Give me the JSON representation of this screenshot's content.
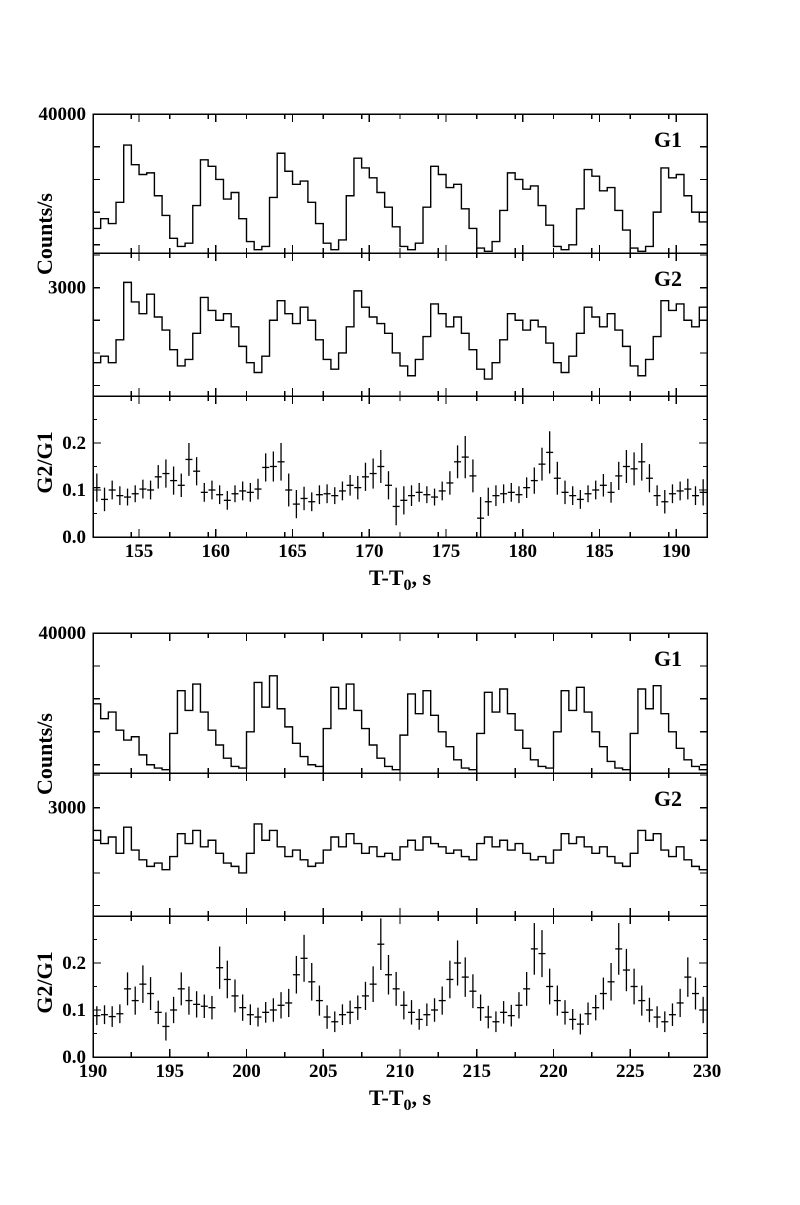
{
  "page": {
    "background": "#ffffff",
    "ink_color": "#000000"
  },
  "chart_data": [
    {
      "id": "top-light-curve",
      "type": "multi-panel histogram + errorbar time series",
      "xlabel": {
        "prefix": "T-T",
        "subscript": "0",
        "suffix": ", s"
      },
      "x_range": [
        152,
        192
      ],
      "bin_seconds": 0.5,
      "xticks_labeled": [
        155,
        160,
        165,
        170,
        175,
        180,
        185,
        190
      ],
      "xtick_label_texts": [
        "155",
        "160",
        "165",
        "170",
        "175",
        "180",
        "185",
        "190"
      ],
      "xticks_minor_step": 2.5,
      "panels": [
        {
          "label": "G1",
          "type": "histogram",
          "ylabel_shared": "Counts/s",
          "ylim": [
            31500,
            40000
          ],
          "yticks": [
            32000,
            34000,
            36000,
            38000,
            40000
          ],
          "ytick_labels": [
            {
              "value": 40000,
              "text": "40000"
            }
          ],
          "counts": [
            33000,
            33600,
            33300,
            34600,
            38100,
            36900,
            36300,
            36400,
            35000,
            33800,
            32400,
            31900,
            32100,
            34400,
            37200,
            36800,
            36000,
            34800,
            35200,
            33600,
            32200,
            31700,
            31900,
            34900,
            37600,
            36500,
            35700,
            35900,
            34600,
            33300,
            32100,
            31700,
            32300,
            35000,
            37300,
            36700,
            36100,
            35200,
            34300,
            33100,
            31900,
            31700,
            32100,
            34300,
            36800,
            36300,
            35500,
            35700,
            34200,
            33000,
            31800,
            31600,
            32200,
            34100,
            36400,
            36000,
            35400,
            35600,
            34400,
            33200,
            31900,
            31700,
            32000,
            34200,
            36600,
            36200,
            35300,
            35500,
            34100,
            32900,
            31800,
            31600,
            31900,
            34000,
            36700,
            36100,
            36300,
            35000,
            34000,
            33400
          ]
        },
        {
          "label": "G2",
          "type": "histogram",
          "ylim": [
            1340,
            3530
          ],
          "yticks": [
            1500,
            2000,
            2500,
            3000,
            3500
          ],
          "ytick_labels": [
            {
              "value": 3000,
              "text": "3000"
            }
          ],
          "counts": [
            1850,
            1950,
            1850,
            2200,
            3080,
            2780,
            2600,
            2900,
            2550,
            2350,
            2050,
            1800,
            1900,
            2300,
            2850,
            2650,
            2500,
            2600,
            2400,
            2100,
            1850,
            1700,
            1950,
            2500,
            2800,
            2600,
            2450,
            2700,
            2500,
            2200,
            1900,
            1750,
            2000,
            2400,
            2950,
            2700,
            2550,
            2450,
            2300,
            2000,
            1800,
            1650,
            1900,
            2250,
            2750,
            2600,
            2400,
            2550,
            2300,
            2050,
            1750,
            1600,
            1850,
            2200,
            2600,
            2500,
            2350,
            2500,
            2400,
            2150,
            1850,
            1700,
            1950,
            2300,
            2700,
            2550,
            2400,
            2600,
            2350,
            2100,
            1800,
            1650,
            1900,
            2250,
            2800,
            2650,
            2750,
            2500,
            2400,
            2700
          ]
        },
        {
          "label": "",
          "type": "errorbar",
          "ylabel": "G2/G1",
          "ylim": [
            0,
            0.3
          ],
          "yticks_major": [
            0,
            0.1,
            0.2
          ],
          "yticks_minor": [
            0.05,
            0.15,
            0.25
          ],
          "ytick_labels": [
            {
              "value": 0,
              "text": "0.0"
            },
            {
              "value": 0.1,
              "text": "0.1"
            },
            {
              "value": 0.2,
              "text": "0.2"
            }
          ],
          "values": [
            0.105,
            0.08,
            0.1,
            0.088,
            0.085,
            0.092,
            0.102,
            0.1,
            0.128,
            0.135,
            0.12,
            0.11,
            0.165,
            0.14,
            0.095,
            0.1,
            0.09,
            0.078,
            0.092,
            0.098,
            0.095,
            0.102,
            0.148,
            0.15,
            0.16,
            0.1,
            0.07,
            0.082,
            0.075,
            0.09,
            0.092,
            0.088,
            0.098,
            0.11,
            0.105,
            0.128,
            0.135,
            0.15,
            0.11,
            0.065,
            0.078,
            0.088,
            0.095,
            0.09,
            0.085,
            0.098,
            0.115,
            0.16,
            0.17,
            0.13,
            0.04,
            0.075,
            0.088,
            0.092,
            0.095,
            0.09,
            0.105,
            0.12,
            0.155,
            0.18,
            0.125,
            0.095,
            0.088,
            0.08,
            0.092,
            0.1,
            0.11,
            0.095,
            0.13,
            0.15,
            0.145,
            0.16,
            0.125,
            0.088,
            0.075,
            0.092,
            0.098,
            0.102,
            0.088,
            0.095
          ],
          "errors": [
            0.03,
            0.025,
            0.02,
            0.02,
            0.018,
            0.018,
            0.02,
            0.02,
            0.025,
            0.03,
            0.03,
            0.025,
            0.035,
            0.03,
            0.02,
            0.02,
            0.02,
            0.02,
            0.018,
            0.02,
            0.02,
            0.022,
            0.03,
            0.032,
            0.04,
            0.035,
            0.03,
            0.025,
            0.02,
            0.02,
            0.02,
            0.018,
            0.02,
            0.022,
            0.025,
            0.03,
            0.032,
            0.035,
            0.03,
            0.04,
            0.03,
            0.022,
            0.02,
            0.018,
            0.018,
            0.02,
            0.025,
            0.035,
            0.045,
            0.035,
            0.045,
            0.03,
            0.022,
            0.02,
            0.02,
            0.018,
            0.022,
            0.028,
            0.035,
            0.045,
            0.035,
            0.025,
            0.02,
            0.02,
            0.018,
            0.02,
            0.024,
            0.022,
            0.03,
            0.035,
            0.035,
            0.04,
            0.03,
            0.022,
            0.025,
            0.02,
            0.02,
            0.022,
            0.02,
            0.028
          ]
        }
      ]
    },
    {
      "id": "bottom-light-curve",
      "type": "multi-panel histogram + errorbar time series",
      "xlabel": {
        "prefix": "T-T",
        "subscript": "0",
        "suffix": ", s"
      },
      "x_range": [
        190,
        230
      ],
      "bin_seconds": 0.5,
      "xticks_labeled": [
        190,
        195,
        200,
        205,
        210,
        215,
        220,
        225,
        230
      ],
      "xtick_label_texts": [
        "190",
        "195",
        "200",
        "205",
        "210",
        "215",
        "220",
        "225",
        "230"
      ],
      "xticks_minor_step": 2.5,
      "panels": [
        {
          "label": "G1",
          "type": "histogram",
          "ylabel_shared": "Counts/s",
          "ylim": [
            31500,
            40000
          ],
          "yticks": [
            32000,
            34000,
            36000,
            38000,
            40000
          ],
          "ytick_labels": [
            {
              "value": 40000,
              "text": "40000"
            }
          ],
          "counts": [
            35700,
            34800,
            35200,
            34100,
            33500,
            33700,
            32600,
            32000,
            31800,
            31700,
            33900,
            36500,
            35300,
            36900,
            35200,
            34100,
            33200,
            32400,
            31900,
            31800,
            34000,
            37000,
            35500,
            37400,
            35400,
            34300,
            33300,
            32500,
            32000,
            31900,
            34200,
            36700,
            35400,
            36900,
            35300,
            34200,
            33200,
            32400,
            31900,
            31700,
            33800,
            36300,
            35100,
            36500,
            35000,
            34000,
            33100,
            32300,
            31800,
            31700,
            33900,
            36400,
            35200,
            36600,
            35100,
            34100,
            33000,
            32300,
            31900,
            31800,
            34000,
            36500,
            35300,
            36700,
            35200,
            34000,
            33100,
            32200,
            31800,
            31700,
            33900,
            36600,
            35400,
            36800,
            35100,
            34000,
            33000,
            32300,
            31900,
            31700
          ]
        },
        {
          "label": "G2",
          "type": "histogram",
          "ylim": [
            1340,
            3530
          ],
          "yticks": [
            1500,
            2000,
            2500,
            3000,
            3500
          ],
          "ytick_labels": [
            {
              "value": 3000,
              "text": "3000"
            }
          ],
          "counts": [
            2650,
            2450,
            2550,
            2300,
            2700,
            2350,
            2200,
            2100,
            2150,
            2050,
            2250,
            2600,
            2450,
            2650,
            2400,
            2500,
            2300,
            2150,
            2100,
            2000,
            2300,
            2750,
            2500,
            2650,
            2400,
            2250,
            2350,
            2200,
            2100,
            2150,
            2350,
            2550,
            2400,
            2600,
            2450,
            2300,
            2400,
            2250,
            2300,
            2200,
            2400,
            2500,
            2350,
            2550,
            2450,
            2400,
            2300,
            2350,
            2250,
            2200,
            2450,
            2550,
            2400,
            2500,
            2350,
            2450,
            2300,
            2200,
            2250,
            2150,
            2350,
            2600,
            2450,
            2550,
            2400,
            2300,
            2400,
            2250,
            2150,
            2100,
            2300,
            2650,
            2500,
            2600,
            2350,
            2250,
            2400,
            2200,
            2100,
            2050
          ]
        },
        {
          "label": "",
          "type": "errorbar",
          "ylabel": "G2/G1",
          "ylim": [
            0,
            0.3
          ],
          "yticks_major": [
            0,
            0.1,
            0.2
          ],
          "yticks_minor": [
            0.05,
            0.15,
            0.25
          ],
          "ytick_labels": [
            {
              "value": 0,
              "text": "0.0"
            },
            {
              "value": 0.1,
              "text": "0.1"
            },
            {
              "value": 0.2,
              "text": "0.2"
            }
          ],
          "values": [
            0.088,
            0.09,
            0.086,
            0.092,
            0.145,
            0.12,
            0.155,
            0.135,
            0.095,
            0.065,
            0.1,
            0.145,
            0.12,
            0.112,
            0.108,
            0.105,
            0.19,
            0.165,
            0.13,
            0.105,
            0.09,
            0.085,
            0.095,
            0.1,
            0.11,
            0.115,
            0.175,
            0.21,
            0.16,
            0.12,
            0.085,
            0.075,
            0.09,
            0.095,
            0.105,
            0.13,
            0.155,
            0.24,
            0.175,
            0.145,
            0.11,
            0.095,
            0.08,
            0.09,
            0.1,
            0.12,
            0.165,
            0.2,
            0.17,
            0.14,
            0.105,
            0.085,
            0.075,
            0.095,
            0.088,
            0.11,
            0.145,
            0.23,
            0.22,
            0.15,
            0.12,
            0.095,
            0.08,
            0.07,
            0.092,
            0.105,
            0.135,
            0.16,
            0.23,
            0.185,
            0.15,
            0.12,
            0.1,
            0.085,
            0.075,
            0.09,
            0.115,
            0.17,
            0.135,
            0.1
          ],
          "errors": [
            0.02,
            0.02,
            0.022,
            0.02,
            0.035,
            0.03,
            0.04,
            0.035,
            0.025,
            0.03,
            0.028,
            0.035,
            0.03,
            0.028,
            0.025,
            0.025,
            0.045,
            0.04,
            0.035,
            0.028,
            0.022,
            0.02,
            0.022,
            0.025,
            0.028,
            0.03,
            0.04,
            0.05,
            0.04,
            0.032,
            0.025,
            0.022,
            0.022,
            0.025,
            0.026,
            0.03,
            0.038,
            0.055,
            0.042,
            0.036,
            0.03,
            0.026,
            0.022,
            0.024,
            0.025,
            0.03,
            0.04,
            0.048,
            0.042,
            0.036,
            0.028,
            0.024,
            0.022,
            0.024,
            0.023,
            0.028,
            0.036,
            0.055,
            0.05,
            0.038,
            0.032,
            0.026,
            0.022,
            0.022,
            0.024,
            0.027,
            0.034,
            0.04,
            0.055,
            0.045,
            0.038,
            0.032,
            0.026,
            0.023,
            0.022,
            0.024,
            0.03,
            0.042,
            0.034,
            0.028
          ]
        }
      ]
    }
  ]
}
